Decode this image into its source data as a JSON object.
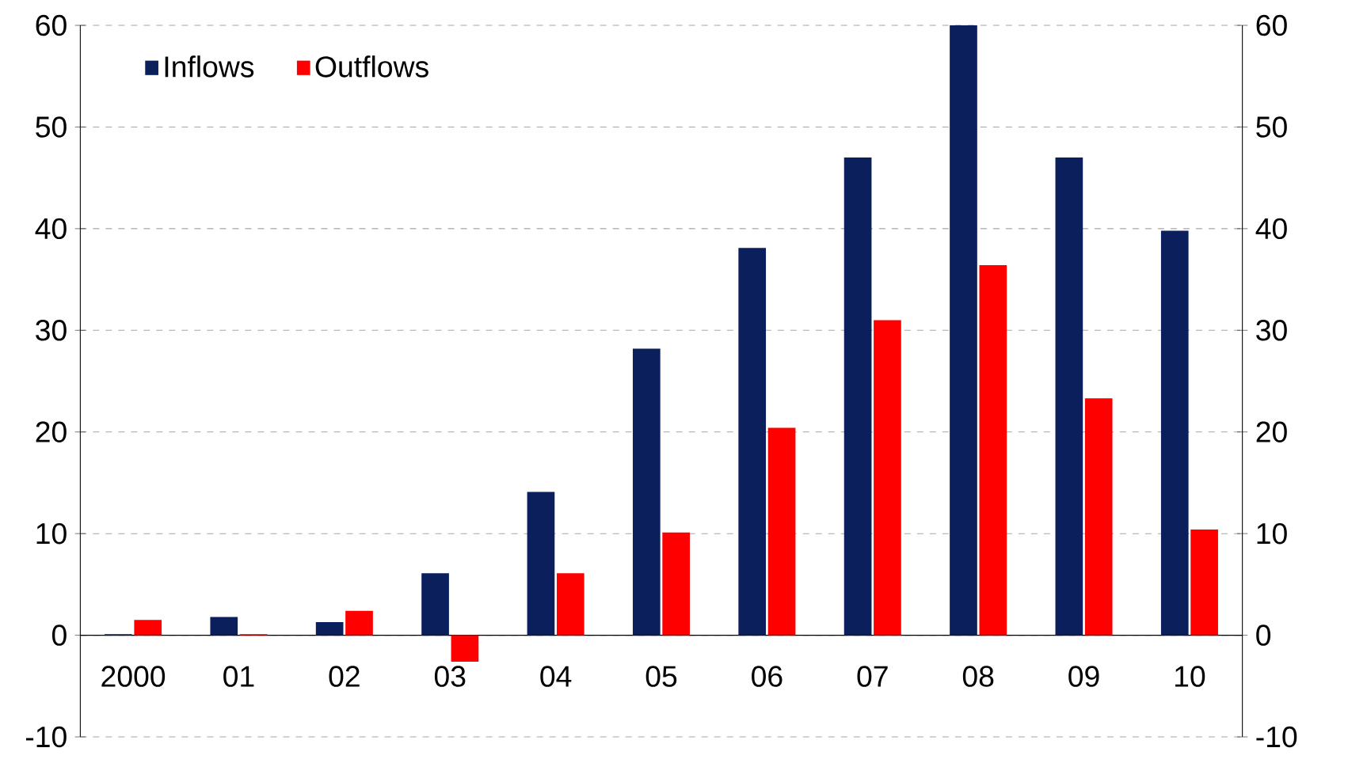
{
  "chart_data": {
    "type": "bar",
    "categories": [
      "2000",
      "01",
      "02",
      "03",
      "04",
      "05",
      "06",
      "07",
      "08",
      "09",
      "10"
    ],
    "series": [
      {
        "name": "Inflows",
        "color": "#0a1f5c",
        "values": [
          0.1,
          1.8,
          1.3,
          6.1,
          14.1,
          28.2,
          38.1,
          47,
          60,
          47,
          39.8
        ]
      },
      {
        "name": "Outflows",
        "color": "#ff0000",
        "values": [
          1.5,
          0.1,
          2.4,
          -2.6,
          6.1,
          10.1,
          20.4,
          31,
          36.4,
          23.3,
          10.4
        ]
      }
    ],
    "ylim": [
      -10,
      60
    ],
    "yticks": [
      -10,
      0,
      10,
      20,
      30,
      40,
      50,
      60
    ],
    "y2lim": [
      -10,
      60
    ],
    "y2ticks": [
      -10,
      0,
      10,
      20,
      30,
      40,
      50,
      60
    ],
    "grid": "y",
    "legend": "top left"
  }
}
